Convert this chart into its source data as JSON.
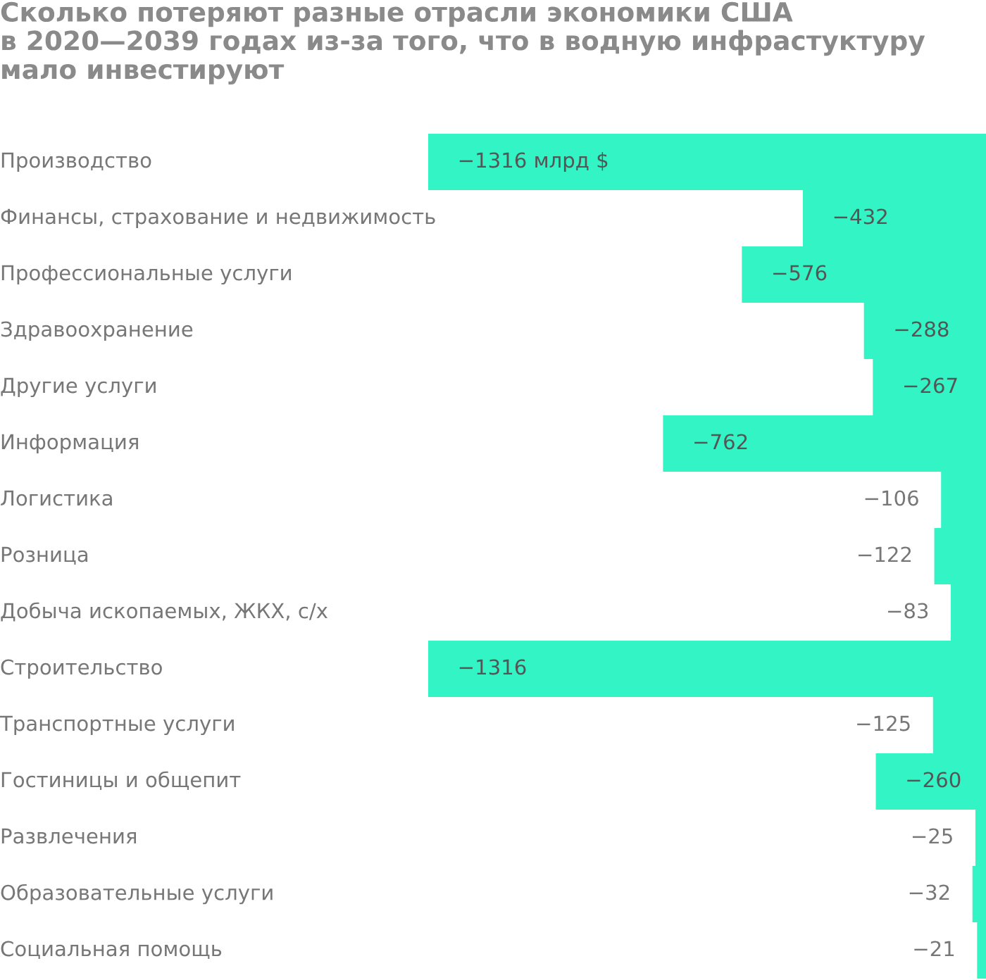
{
  "chart_data": {
    "type": "bar",
    "orientation": "horizontal",
    "title": "Сколько потеряют разные отрасли экономики США\nв 2020—2039 годах из-за того, что в водную инфрастуктуру\nмало инвестируют",
    "categories": [
      "Производство",
      "Финансы, страхование и недвижимость",
      "Профессиональные услуги",
      "Здравоохранение",
      "Другие услуги",
      "Информация",
      "Логистика",
      "Розница",
      "Добыча ископаемых, ЖКХ, с/х",
      "Строительство",
      "Транспортные услуги",
      "Гостиницы и общепит",
      "Развлечения",
      "Образовательные услуги",
      "Социальная помощь"
    ],
    "values": [
      -1316,
      -432,
      -576,
      -288,
      -267,
      -762,
      -106,
      -122,
      -83,
      -1316,
      -125,
      -260,
      -25,
      -32,
      -21
    ],
    "value_labels": [
      "−1316 млрд $",
      "−432",
      "−576",
      "−288",
      "−267",
      "−762",
      "−106",
      "−122",
      "−83",
      "−1316",
      "−125",
      "−260",
      "−25",
      "−32",
      "−21"
    ],
    "color": "#32f4c4"
  }
}
